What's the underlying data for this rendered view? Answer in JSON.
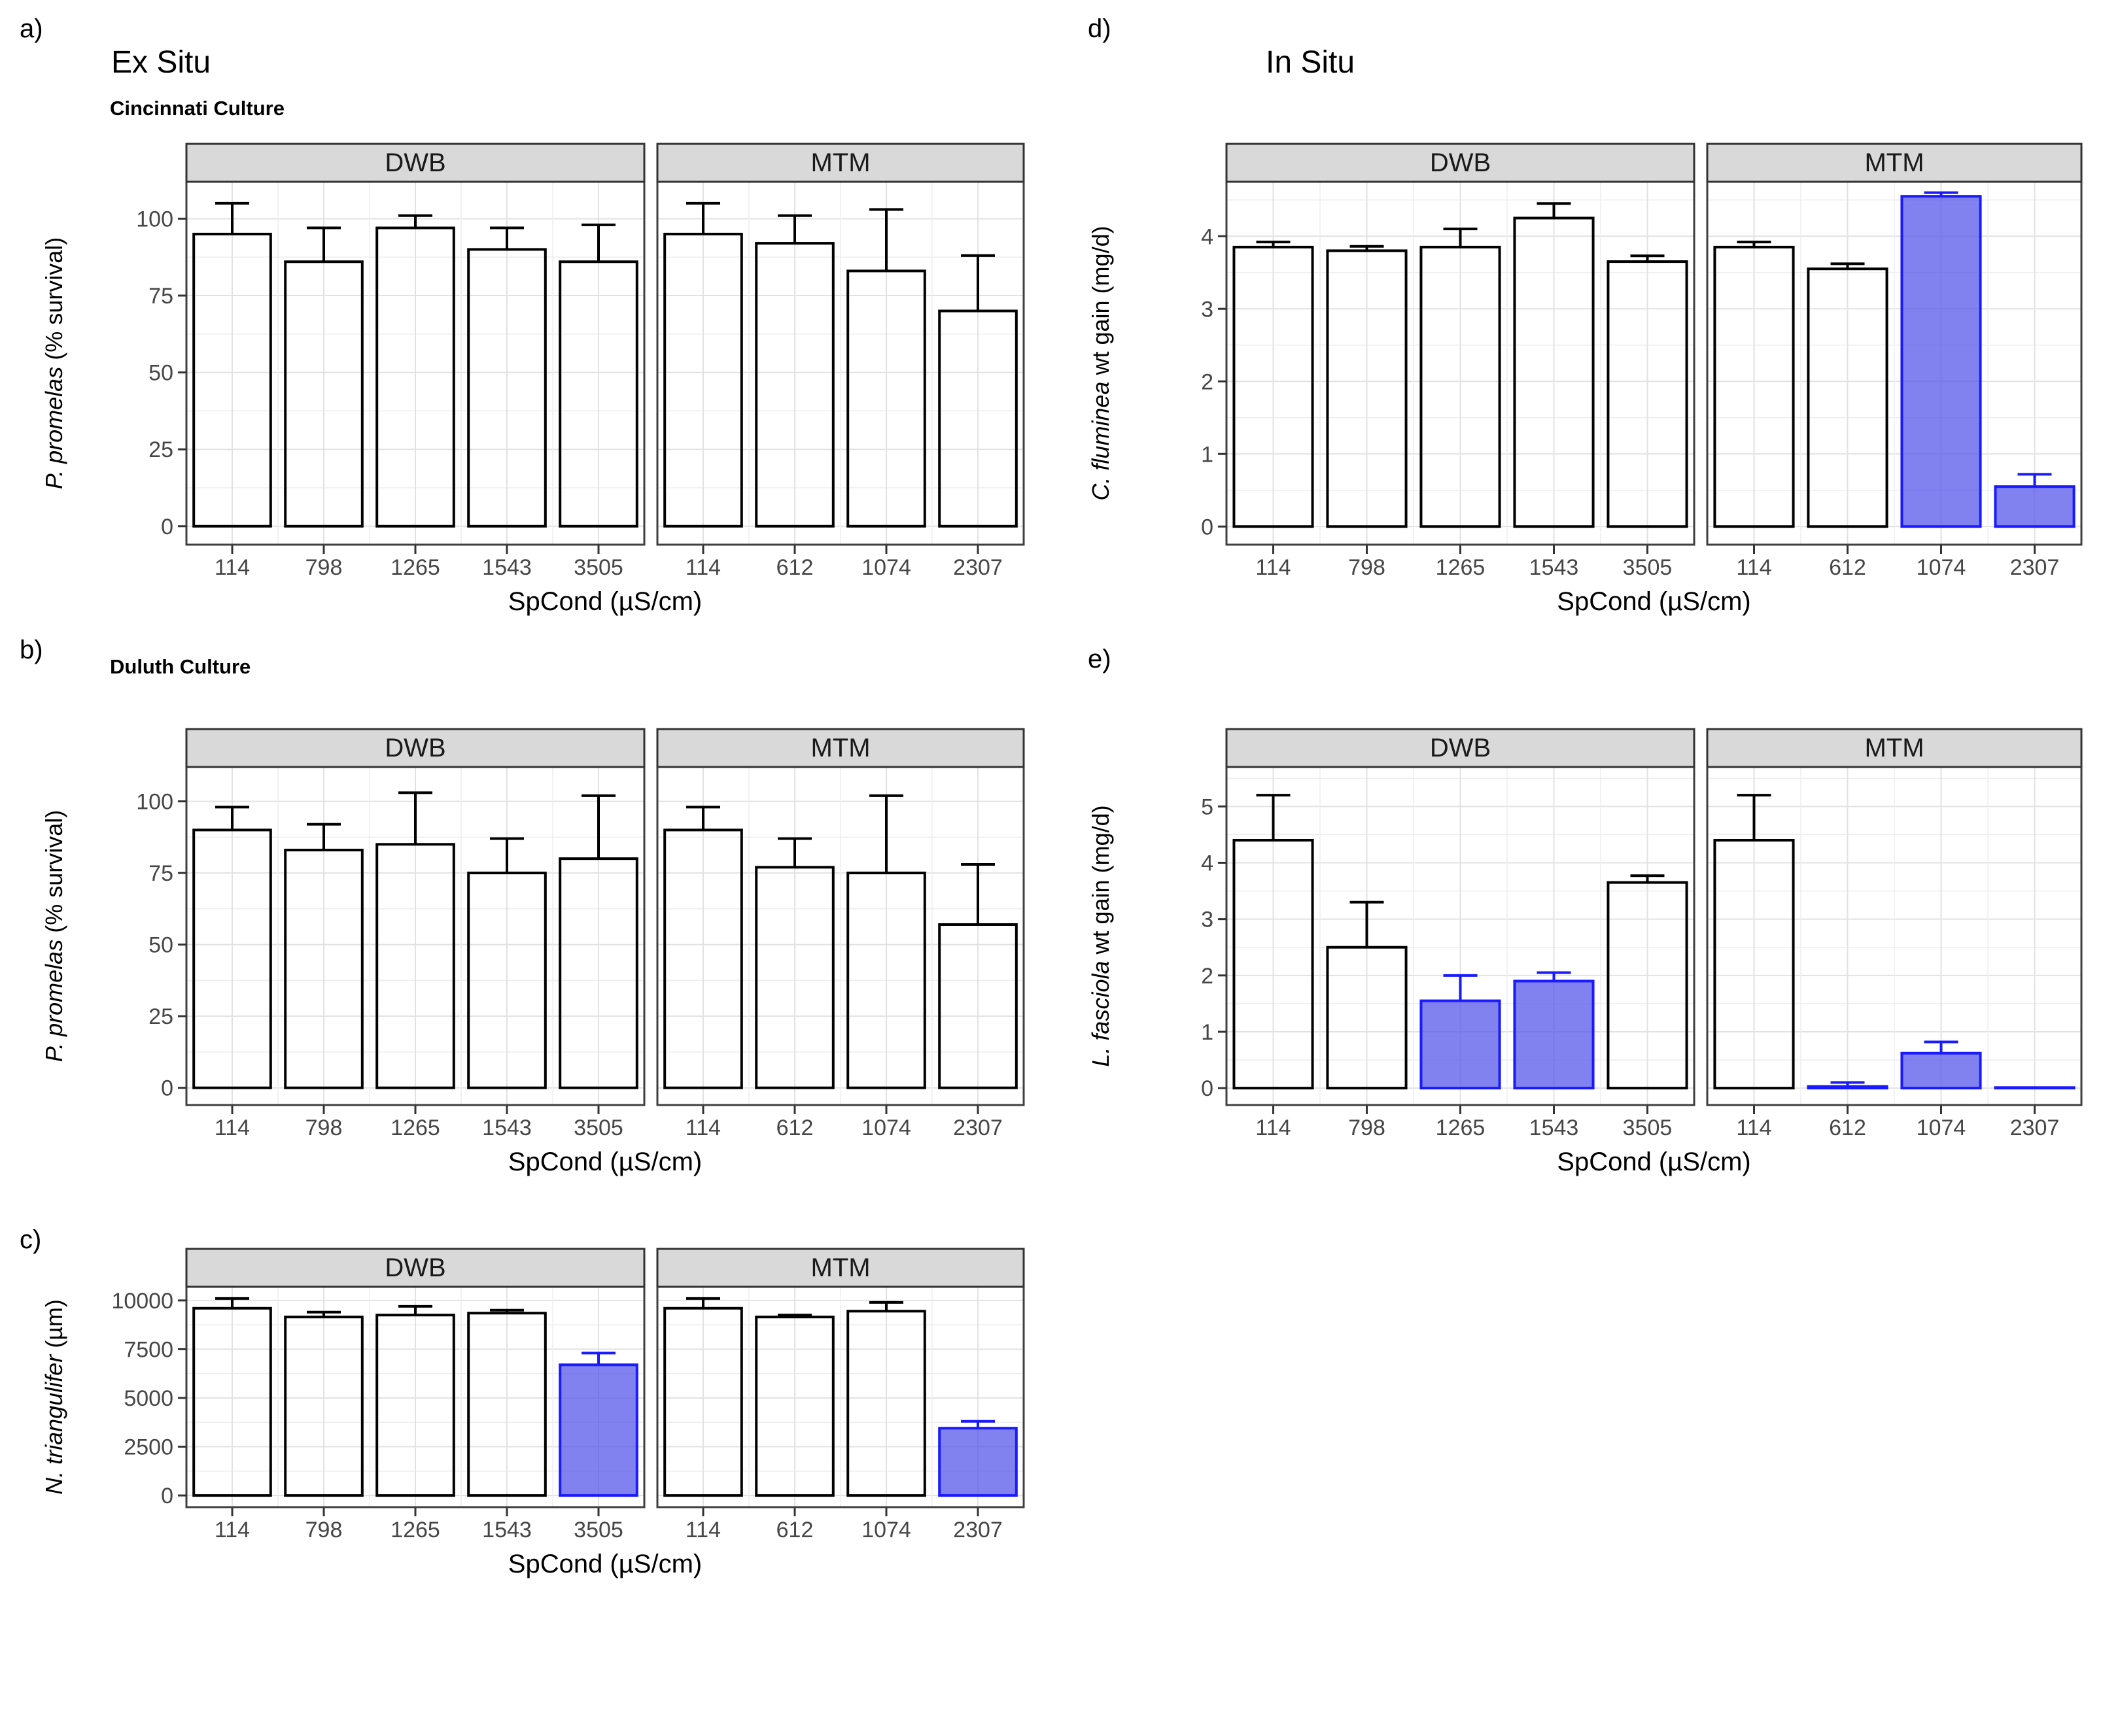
{
  "figure": {
    "column_titles": {
      "left": "Ex Situ",
      "right": "In Situ"
    },
    "shared_xlabel": "SpCond (µS/cm)"
  },
  "colors": {
    "highlight_fill_base": "#5050ea",
    "highlight_fill_rendered": "#8181f0",
    "highlight_stroke": "#1a1aff",
    "bar_stroke": "#000000",
    "strip_bg": "#d9d9d9",
    "strip_border": "#333333",
    "strip_text": "#1a1a1a",
    "panel_border": "#3f3f3f",
    "grid_major": "#e2e2e2",
    "grid_minor": "#eeeeee",
    "tick_mark": "#333333",
    "tick_label": "#464646",
    "axis_title": "#000000"
  },
  "chart_data": [
    {
      "id": "a",
      "tag": "a)",
      "type": "bar",
      "title": "Ex Situ",
      "subtitle": "Cincinnati Culture",
      "ylabel": {
        "italic": "P. promelas",
        "rest": " (% survival)"
      },
      "xlabel": "SpCond (µS/cm)",
      "ylim": [
        -6,
        112
      ],
      "yticks": [
        0,
        25,
        50,
        75,
        100
      ],
      "grid": true,
      "legend": "none",
      "facets": [
        {
          "label": "DWB",
          "categories": [
            "114",
            "798",
            "1265",
            "1543",
            "3505"
          ],
          "values": [
            95,
            86,
            97,
            90,
            86
          ],
          "errors_high": [
            105,
            97,
            101,
            97,
            98
          ],
          "highlight": [
            false,
            false,
            false,
            false,
            false
          ]
        },
        {
          "label": "MTM",
          "categories": [
            "114",
            "612",
            "1074",
            "2307"
          ],
          "values": [
            95,
            92,
            83,
            70
          ],
          "errors_high": [
            105,
            101,
            103,
            88
          ],
          "highlight": [
            false,
            false,
            false,
            false
          ]
        }
      ]
    },
    {
      "id": "b",
      "tag": "b)",
      "type": "bar",
      "title": "",
      "subtitle": "Duluth Culture",
      "ylabel": {
        "italic": "P. promelas",
        "rest": " (% survival)"
      },
      "xlabel": "SpCond (µS/cm)",
      "ylim": [
        -6,
        112
      ],
      "yticks": [
        0,
        25,
        50,
        75,
        100
      ],
      "grid": true,
      "legend": "none",
      "facets": [
        {
          "label": "DWB",
          "categories": [
            "114",
            "798",
            "1265",
            "1543",
            "3505"
          ],
          "values": [
            90,
            83,
            85,
            75,
            80
          ],
          "errors_high": [
            98,
            92,
            103,
            87,
            102
          ],
          "highlight": [
            false,
            false,
            false,
            false,
            false
          ]
        },
        {
          "label": "MTM",
          "categories": [
            "114",
            "612",
            "1074",
            "2307"
          ],
          "values": [
            90,
            77,
            75,
            57
          ],
          "errors_high": [
            98,
            87,
            102,
            78
          ],
          "highlight": [
            false,
            false,
            false,
            false
          ]
        }
      ]
    },
    {
      "id": "c",
      "tag": "c)",
      "type": "bar",
      "title": "",
      "subtitle": "",
      "ylabel": {
        "italic": "N. triangulifer",
        "rest": " (µm)"
      },
      "xlabel": "SpCond (µS/cm)",
      "ylim": [
        -600,
        10700
      ],
      "yticks": [
        0,
        2500,
        5000,
        7500,
        10000
      ],
      "grid": true,
      "legend": "none",
      "facets": [
        {
          "label": "DWB",
          "categories": [
            "114",
            "798",
            "1265",
            "1543",
            "3505"
          ],
          "values": [
            9600,
            9150,
            9250,
            9350,
            6700
          ],
          "errors_high": [
            10100,
            9400,
            9700,
            9500,
            7300
          ],
          "highlight": [
            false,
            false,
            false,
            false,
            true
          ]
        },
        {
          "label": "MTM",
          "categories": [
            "114",
            "612",
            "1074",
            "2307"
          ],
          "values": [
            9600,
            9150,
            9450,
            3450
          ],
          "errors_high": [
            10100,
            9250,
            9900,
            3800
          ],
          "highlight": [
            false,
            false,
            false,
            true
          ]
        }
      ]
    },
    {
      "id": "d",
      "tag": "d)",
      "type": "bar",
      "title": "In Situ",
      "subtitle": "",
      "ylabel": {
        "italic": "C. fluminea",
        "rest": " wt gain (mg/d)"
      },
      "xlabel": "SpCond (µS/cm)",
      "ylim": [
        -0.25,
        4.75
      ],
      "yticks": [
        0,
        1,
        2,
        3,
        4
      ],
      "grid": true,
      "legend": "none",
      "facets": [
        {
          "label": "DWB",
          "categories": [
            "114",
            "798",
            "1265",
            "1543",
            "3505"
          ],
          "values": [
            3.85,
            3.8,
            3.85,
            4.25,
            3.65
          ],
          "errors_high": [
            3.92,
            3.86,
            4.1,
            4.45,
            3.73
          ],
          "highlight": [
            false,
            false,
            false,
            false,
            false
          ]
        },
        {
          "label": "MTM",
          "categories": [
            "114",
            "612",
            "1074",
            "2307"
          ],
          "values": [
            3.85,
            3.55,
            4.55,
            0.55
          ],
          "errors_high": [
            3.92,
            3.62,
            4.6,
            0.72
          ],
          "highlight": [
            false,
            false,
            true,
            true
          ]
        }
      ]
    },
    {
      "id": "e",
      "tag": "e)",
      "type": "bar",
      "title": "",
      "subtitle": "",
      "ylabel": {
        "italic": "L. fasciola",
        "rest": " wt gain (mg/d)"
      },
      "xlabel": "SpCond (µS/cm)",
      "ylim": [
        -0.3,
        5.7
      ],
      "yticks": [
        0,
        1,
        2,
        3,
        4,
        5
      ],
      "grid": true,
      "legend": "none",
      "facets": [
        {
          "label": "DWB",
          "categories": [
            "114",
            "798",
            "1265",
            "1543",
            "3505"
          ],
          "values": [
            4.4,
            2.5,
            1.55,
            1.9,
            3.65
          ],
          "errors_high": [
            5.2,
            3.3,
            2.0,
            2.05,
            3.77
          ],
          "highlight": [
            false,
            false,
            true,
            true,
            false
          ]
        },
        {
          "label": "MTM",
          "categories": [
            "114",
            "612",
            "1074",
            "2307"
          ],
          "values": [
            4.4,
            0.03,
            0.62,
            0.01
          ],
          "errors_high": [
            5.2,
            0.1,
            0.82,
            0.01
          ],
          "highlight": [
            false,
            true,
            true,
            true
          ]
        }
      ]
    }
  ]
}
